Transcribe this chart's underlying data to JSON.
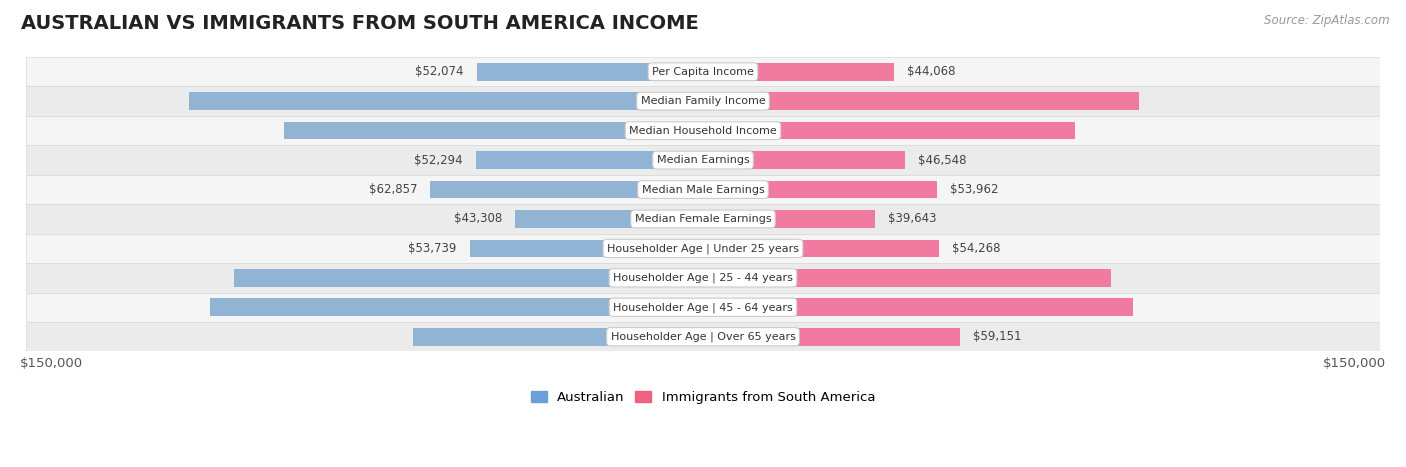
{
  "title": "AUSTRALIAN VS IMMIGRANTS FROM SOUTH AMERICA INCOME",
  "source": "Source: ZipAtlas.com",
  "categories": [
    "Per Capita Income",
    "Median Family Income",
    "Median Household Income",
    "Median Earnings",
    "Median Male Earnings",
    "Median Female Earnings",
    "Householder Age | Under 25 years",
    "Householder Age | 25 - 44 years",
    "Householder Age | 45 - 64 years",
    "Householder Age | Over 65 years"
  ],
  "australian": [
    52074,
    118440,
    96490,
    52294,
    62857,
    43308,
    53739,
    107912,
    113533,
    66891
  ],
  "immigrants": [
    44068,
    100414,
    85611,
    46548,
    53962,
    39643,
    54268,
    94042,
    99126,
    59151
  ],
  "max_val": 150000,
  "color_australian": "#92b4d4",
  "color_immigrants": "#f07aa0",
  "color_australian_label": "#6a9fd8",
  "color_immigrants_label": "#f06080",
  "title_fontsize": 14,
  "axis_fontsize": 9.5,
  "bar_label_fontsize": 8.5,
  "category_fontsize": 8,
  "legend_fontsize": 9.5,
  "source_fontsize": 8.5,
  "inside_threshold": 65000
}
